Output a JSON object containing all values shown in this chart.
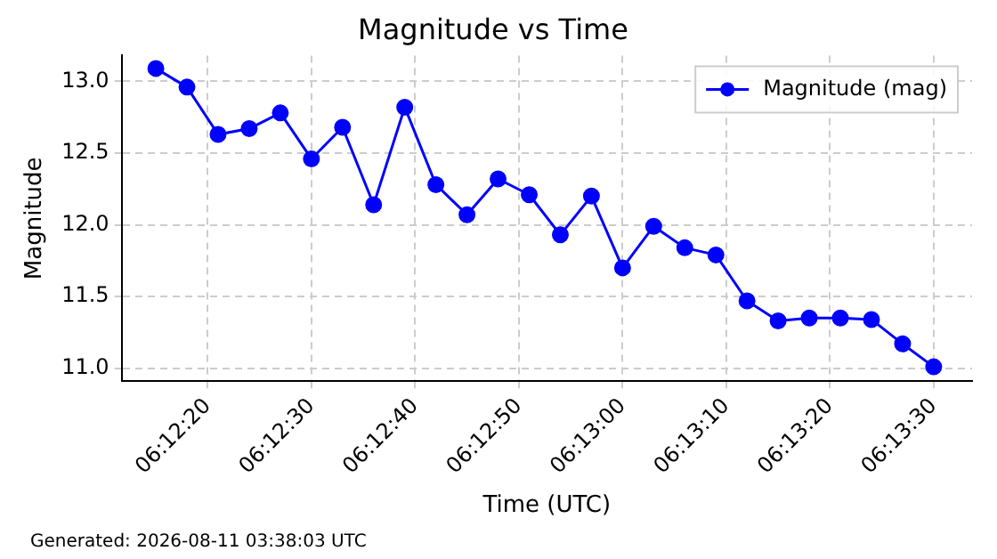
{
  "chart_data": {
    "type": "line",
    "title": "Magnitude vs Time",
    "xlabel": "Time (UTC)",
    "ylabel": "Magnitude",
    "x": [
      6.204167,
      6.205,
      6.205833,
      6.206667,
      6.2075,
      6.208333,
      6.209167,
      6.21,
      6.210833,
      6.211667,
      6.2125,
      6.213333,
      6.214167,
      6.215,
      6.215833,
      6.216667,
      6.2175,
      6.218333,
      6.219167,
      6.22,
      6.220833,
      6.221667,
      6.2225,
      6.223333,
      6.224167,
      6.225
    ],
    "series": [
      {
        "name": "Magnitude (mag)",
        "color": "#0000ff",
        "values": [
          13.09,
          12.96,
          12.63,
          12.67,
          12.78,
          12.46,
          12.68,
          12.14,
          12.82,
          12.28,
          12.07,
          12.32,
          12.21,
          11.93,
          12.2,
          11.7,
          11.99,
          11.84,
          11.79,
          11.47,
          11.33,
          11.35,
          11.35,
          11.34,
          11.17,
          11.01
        ]
      }
    ],
    "xlim": [
      6.20325,
      6.226028
    ],
    "ylim": [
      10.91,
      13.18
    ],
    "xticks": [
      {
        "value": 6.205556,
        "label": "06:12:20"
      },
      {
        "value": 6.208333,
        "label": "06:12:30"
      },
      {
        "value": 6.211111,
        "label": "06:12:40"
      },
      {
        "value": 6.213889,
        "label": "06:12:50"
      },
      {
        "value": 6.216667,
        "label": "06:13:00"
      },
      {
        "value": 6.219444,
        "label": "06:13:10"
      },
      {
        "value": 6.222222,
        "label": "06:13:20"
      },
      {
        "value": 6.225,
        "label": "06:13:30"
      }
    ],
    "yticks": [
      {
        "value": 11,
        "label": "11.0"
      },
      {
        "value": 11.5,
        "label": "11.5"
      },
      {
        "value": 12,
        "label": "12.0"
      },
      {
        "value": 12.5,
        "label": "12.5"
      },
      {
        "value": 13,
        "label": "13.0"
      }
    ],
    "grid": true,
    "legend": "top right",
    "marker": "circle",
    "line_style": "solid",
    "annotations": [
      "Generated: 2026-08-11 03:38:03 UTC"
    ]
  }
}
